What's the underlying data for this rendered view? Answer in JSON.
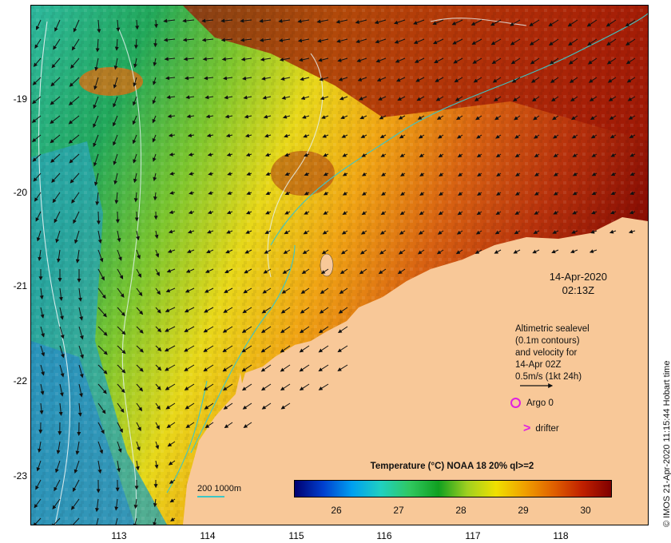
{
  "map": {
    "y_ticks": [
      "-19",
      "-20",
      "-21",
      "-22",
      "-23"
    ],
    "x_ticks": [
      "113",
      "114",
      "115",
      "116",
      "117",
      "118"
    ],
    "date_line1": "14-Apr-2020",
    "date_line2": "02:13Z",
    "legend_lines": [
      "Altimetric sealevel",
      "(0.1m contours)",
      "and velocity for",
      "14-Apr 02Z",
      "0.5m/s (1kt 24h)"
    ],
    "argo_label": "Argo 0",
    "drifter_label": "drifter",
    "scale_label": "200  1000m",
    "colorbar_title": "Temperature (°C) NOAA 18 20% ql>=2",
    "colorbar_ticks": [
      "26",
      "27",
      "28",
      "29",
      "30"
    ],
    "credit": "© IMOS 21-Apr-2020 11:15:44 Hobart time",
    "colors": {
      "land": "#f8c898",
      "contour": "#3cc6c6",
      "marker": "#e020e0",
      "colormap": [
        "#000070",
        "#0040d0",
        "#00a0f0",
        "#20d0c0",
        "#30c860",
        "#10a020",
        "#a0d020",
        "#f0e000",
        "#f0a000",
        "#e06000",
        "#c02000",
        "#800000"
      ]
    }
  }
}
